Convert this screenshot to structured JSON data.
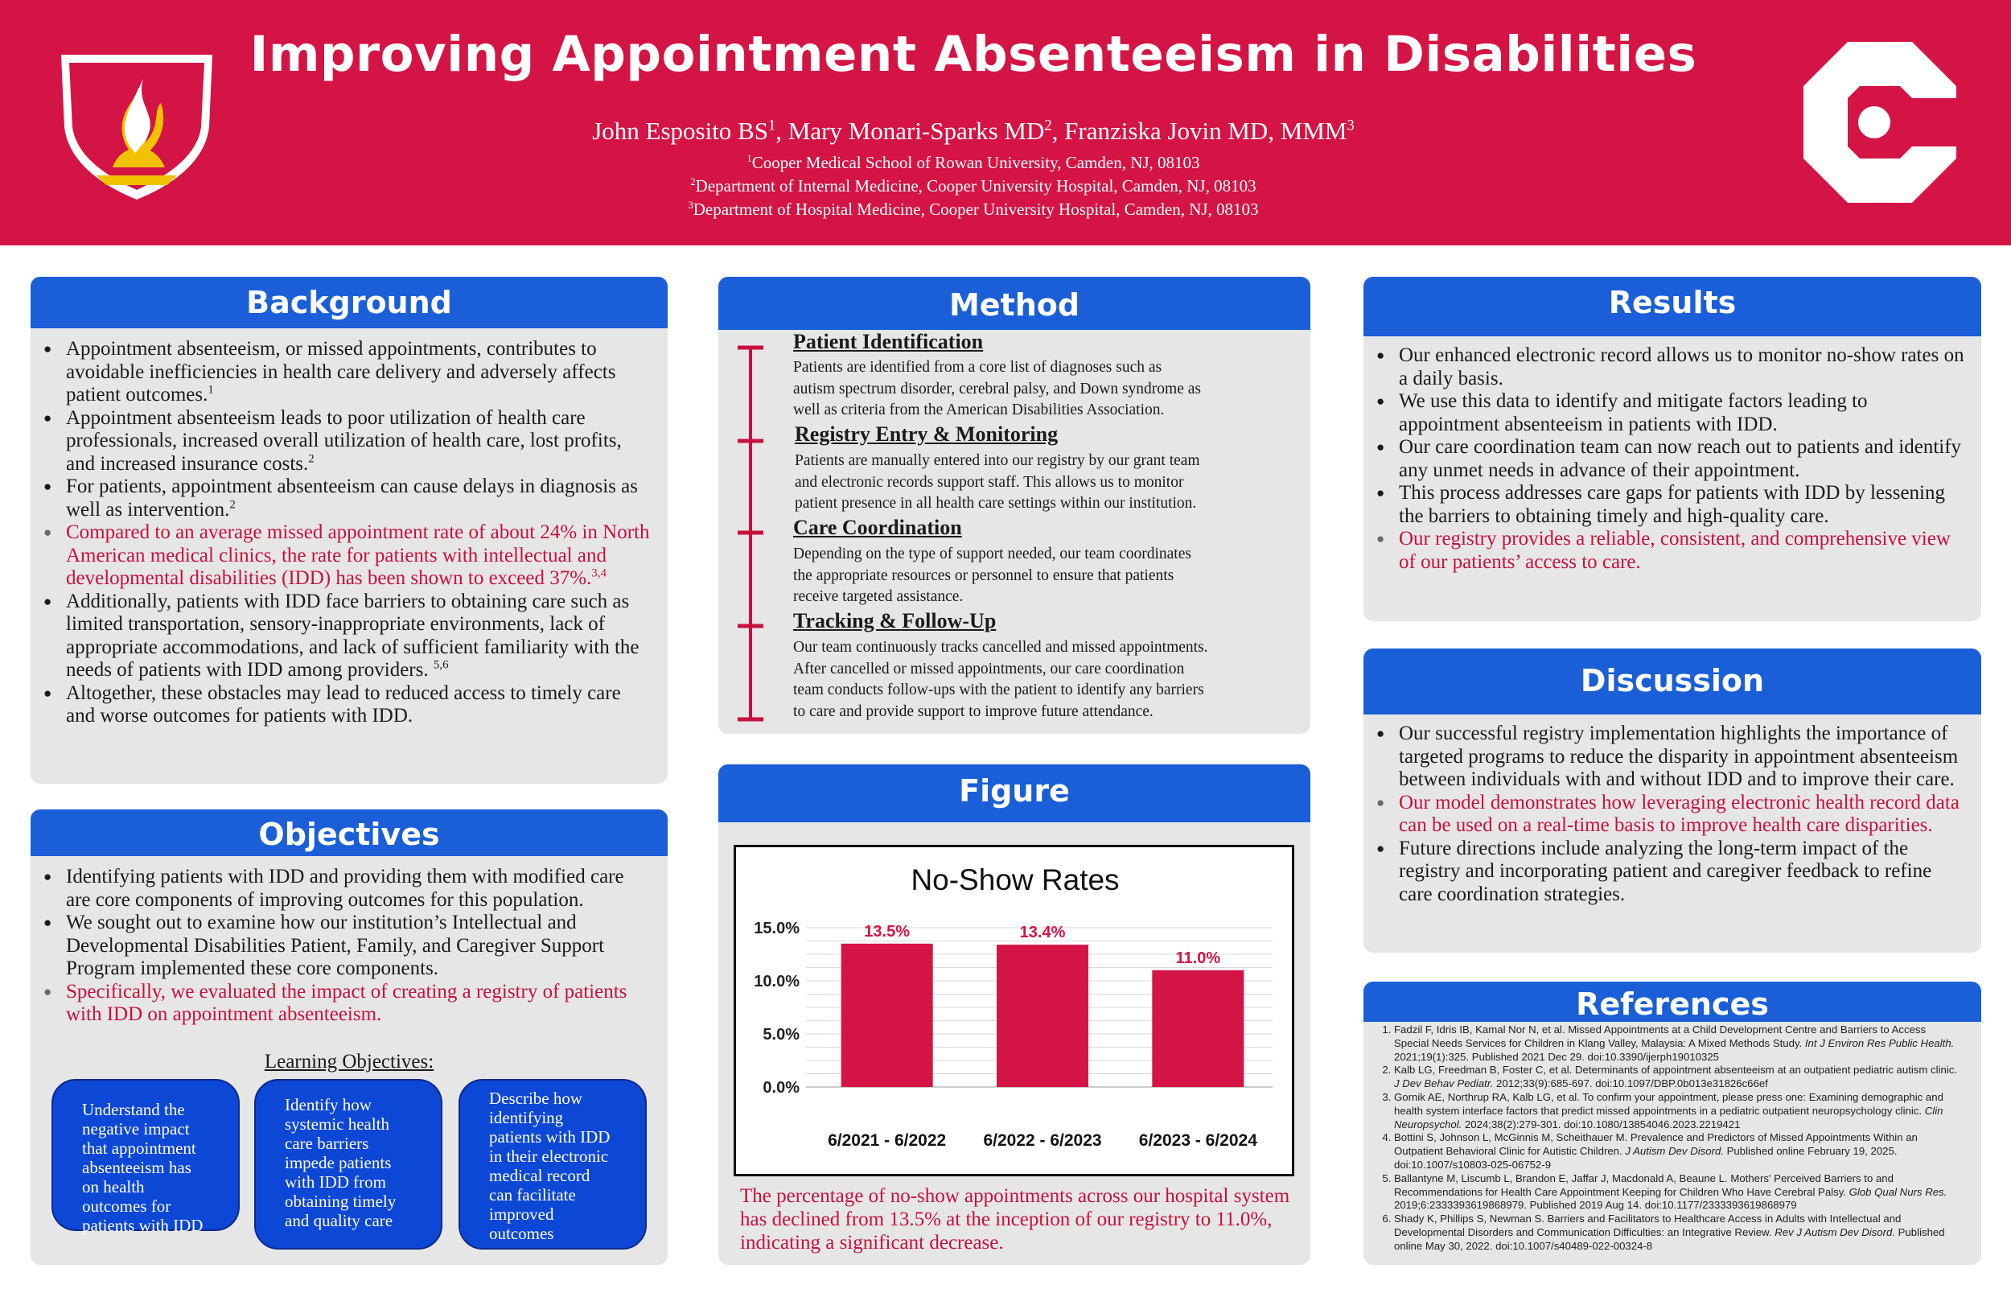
{
  "header": {
    "title": "Improving Appointment Absenteeism in Disabilities",
    "authors": [
      {
        "name": "John Esposito BS",
        "sup": "1"
      },
      {
        "name": "Mary Monari-Sparks MD",
        "sup": "2"
      },
      {
        "name": "Franziska Jovin MD, MMM",
        "sup": "3"
      }
    ],
    "affiliations": [
      {
        "sup": "1",
        "text": "Cooper Medical School of Rowan University, Camden, NJ, 08103"
      },
      {
        "sup": "2",
        "text": "Department of Internal Medicine, Cooper University Hospital, Camden, NJ, 08103"
      },
      {
        "sup": "3",
        "text": "Department of Hospital Medicine, Cooper University Hospital, Camden, NJ, 08103"
      }
    ],
    "logo_left": "shield-logo",
    "logo_right": "cooper-c-logo"
  },
  "colors": {
    "brand_red": "#d41444",
    "header_blue": "#1a5fd8",
    "panel_gray": "#e6e6e6",
    "accent_red_text": "#c8103e"
  },
  "background": {
    "heading": "Background",
    "items": [
      {
        "text": "Appointment absenteeism, or missed appointments, contributes to avoidable inefficiencies in health care delivery and adversely affects patient outcomes.",
        "sup": "1",
        "red": false
      },
      {
        "text": "Appointment absenteeism leads to poor utilization of health care professionals, increased overall utilization of health care, lost profits, and increased insurance costs.",
        "sup": "2",
        "red": false
      },
      {
        "text": "For patients, appointment absenteeism can cause delays in diagnosis as well as intervention.",
        "sup": "2",
        "red": false
      },
      {
        "text": "Compared to an average missed appointment rate of about 24% in North American medical clinics, the rate for patients with intellectual and developmental disabilities (IDD) has been shown to exceed 37%.",
        "sup": "3,4",
        "red": true
      },
      {
        "text": "Additionally, patients with IDD face barriers to obtaining care such as limited transportation, sensory-inappropriate environments, lack of appropriate accommodations, and lack of sufficient familiarity with the needs of patients with IDD among providers. ",
        "sup": "5,6",
        "red": false
      },
      {
        "text": "Altogether, these obstacles may lead to reduced access to timely care and worse outcomes for patients with IDD.",
        "sup": "",
        "red": false
      }
    ]
  },
  "objectives": {
    "heading": "Objectives",
    "items": [
      {
        "text": "Identifying patients with IDD and providing them with modified care are core components of improving outcomes for this population.",
        "red": false
      },
      {
        "text": "We sought out to examine how our institution’s Intellectual and Developmental Disabilities Patient, Family, and Caregiver Support Program implemented these core components.",
        "red": false
      },
      {
        "text": "Specifically, we evaluated the impact of creating a registry of patients with IDD on appointment absenteeism.",
        "red": true
      }
    ],
    "learning_title": "Learning Objectives:",
    "learning_boxes": [
      [
        "Understand the",
        "negative impact",
        "that appointment",
        "absenteeism has",
        "on health",
        "outcomes for",
        "patients with IDD"
      ],
      [
        "Identify how",
        "systemic health",
        "care barriers",
        "impede patients",
        "with IDD from",
        "obtaining timely",
        "and quality care"
      ],
      [
        "Describe how",
        "identifying",
        "patients with IDD",
        "in their electronic",
        "medical record",
        "can facilitate",
        "improved",
        "outcomes"
      ]
    ]
  },
  "method": {
    "heading": "Method",
    "steps": [
      {
        "title": "Patient Identification",
        "lines": [
          "Patients are identified from a core list of diagnoses such as",
          "autism spectrum disorder, cerebral palsy, and Down syndrome as",
          "well as criteria from the American Disabilities Association."
        ]
      },
      {
        "title": "Registry Entry & Monitoring",
        "lines": [
          "Patients are manually entered into our registry by our grant team",
          "and electronic records support staff. This allows us to monitor",
          "patient presence in all health care settings within our institution."
        ]
      },
      {
        "title": "Care Coordination",
        "lines": [
          "Depending on the type of support needed, our team coordinates",
          "the appropriate resources or personnel to ensure that patients",
          "receive targeted assistance."
        ]
      },
      {
        "title": "Tracking & Follow-Up",
        "lines": [
          "Our team continuously tracks cancelled and missed appointments.",
          "After cancelled or missed appointments, our care coordination",
          "team conducts follow-ups with the patient to identify any barriers",
          "to care and provide support to improve future attendance."
        ]
      }
    ]
  },
  "figure": {
    "heading": "Figure",
    "caption": "The percentage of no-show appointments across our hospital system has declined from 13.5% at the inception of our registry to 11.0%, indicating a significant decrease."
  },
  "chart_data": {
    "type": "bar",
    "title": "No-Show Rates",
    "categories": [
      "6/2021 - 6/2022",
      "6/2022 - 6/2023",
      "6/2023 - 6/2024"
    ],
    "values": [
      13.5,
      13.4,
      11.0
    ],
    "value_labels": [
      "13.5%",
      "13.4%",
      "11.0%"
    ],
    "ylim": [
      0,
      15
    ],
    "yticks": [
      0,
      5,
      10,
      15
    ],
    "ytick_labels": [
      "0.0%",
      "5.0%",
      "10.0%",
      "15.0%"
    ],
    "xlabel": "",
    "ylabel": "",
    "bar_color": "#d41444",
    "label_color": "#d41444",
    "grid": true
  },
  "results": {
    "heading": "Results",
    "items": [
      {
        "text": "Our enhanced electronic record allows us to monitor no-show rates on a daily basis.",
        "red": false
      },
      {
        "text": "We use this data to identify and mitigate factors leading to appointment absenteeism in patients with IDD.",
        "red": false
      },
      {
        "text": "Our care coordination team can now reach out to patients and identify any unmet needs in advance of their appointment.",
        "red": false
      },
      {
        "text": "This process addresses care gaps for patients with IDD by lessening the barriers to obtaining timely and high-quality care.",
        "red": false
      },
      {
        "text": "Our registry provides a reliable, consistent, and comprehensive view of our patients’ access to care.",
        "red": true
      }
    ]
  },
  "discussion": {
    "heading": "Discussion",
    "items": [
      {
        "text": "Our successful registry implementation highlights the importance of targeted programs to reduce the disparity in appointment absenteeism between individuals with and without IDD and to improve their care.",
        "red": false
      },
      {
        "text": "Our model demonstrates how leveraging electronic health record data can be used on a real-time basis to improve health care disparities.",
        "red": true
      },
      {
        "text": "Future directions include analyzing the long-term impact of the registry and incorporating patient and caregiver feedback to refine care coordination strategies.",
        "red": false
      }
    ]
  },
  "references": {
    "heading": "References",
    "items": [
      {
        "pre": "Fadzil F, Idris IB, Kamal Nor N, et al. Missed Appointments at a Child Development Centre and Barriers to Access Special Needs Services for Children in Klang Valley, Malaysia: A Mixed Methods Study. ",
        "journal": "Int J Environ Res Public Health.",
        "post": " 2021;19(1):325. Published 2021 Dec 29. doi:10.3390/ijerph19010325"
      },
      {
        "pre": "Kalb LG, Freedman B, Foster C, et al. Determinants of appointment absenteeism at an outpatient pediatric autism clinic. ",
        "journal": "J Dev Behav Pediatr.",
        "post": " 2012;33(9):685-697. doi:10.1097/DBP.0b013e31826c66ef"
      },
      {
        "pre": "Gornik AE, Northrup RA, Kalb LG, et al. To confirm your appointment, please press one: Examining demographic and health system interface factors that predict missed appointments in a pediatric outpatient neuropsychology clinic. ",
        "journal": "Clin Neuropsychol.",
        "post": " 2024;38(2):279-301. doi:10.1080/13854046.2023.2219421"
      },
      {
        "pre": "Bottini S, Johnson L, McGinnis M, Scheithauer M. Prevalence and Predictors of Missed Appointments Within an Outpatient Behavioral Clinic for Autistic Children. ",
        "journal": "J Autism Dev Disord.",
        "post": " Published online February 19, 2025. doi:10.1007/s10803-025-06752-9"
      },
      {
        "pre": "Ballantyne M, Liscumb L, Brandon E, Jaffar J, Macdonald A, Beaune L. Mothers' Perceived Barriers to and Recommendations for Health Care Appointment Keeping for Children Who Have Cerebral Palsy. ",
        "journal": "Glob Qual Nurs Res.",
        "post": " 2019;6:2333393619868979. Published 2019 Aug 14. doi:10.1177/2333393619868979"
      },
      {
        "pre": "Shady K, Phillips S, Newman S. Barriers and Facilitators to Healthcare Access in Adults with Intellectual and Developmental Disorders and Communication Difficulties: an Integrative Review. ",
        "journal": "Rev J Autism Dev Disord.",
        "post": " Published online May 30, 2022. doi:10.1007/s40489-022-00324-8"
      }
    ]
  }
}
